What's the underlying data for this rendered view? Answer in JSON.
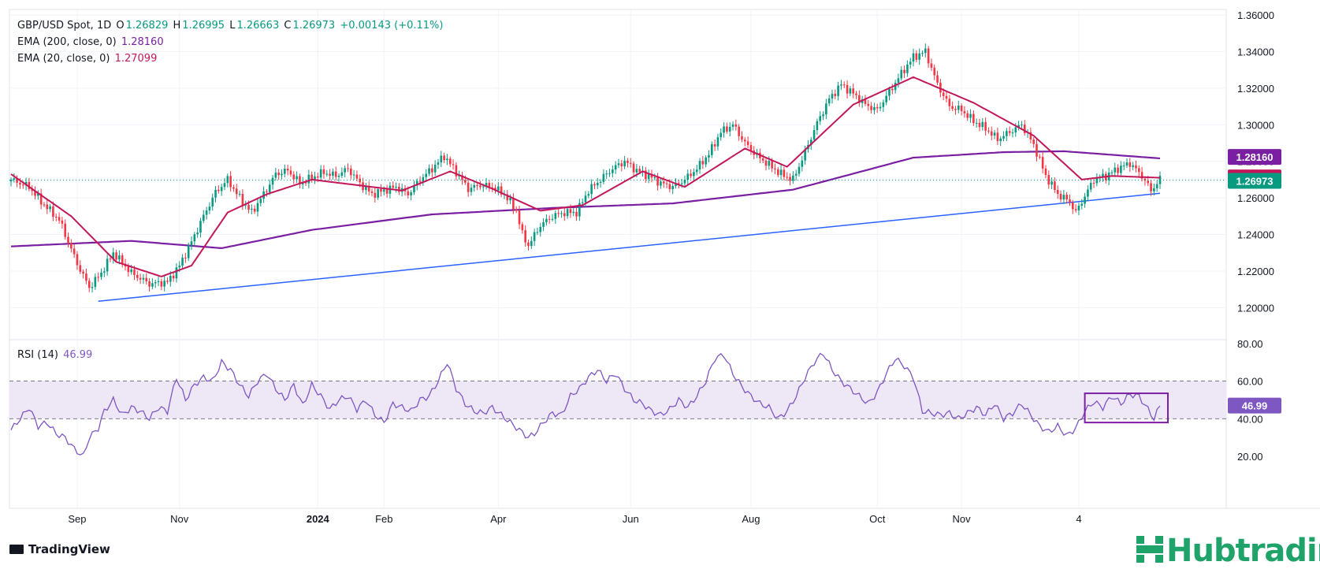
{
  "header": {
    "symbol": "GBP/USD Spot, 1D",
    "open_label": "O",
    "open": "1.26829",
    "high_label": "H",
    "high": "1.26995",
    "low_label": "L",
    "low": "1.26663",
    "close_label": "C",
    "close": "1.26973",
    "change": "+0.00143 (+0.11%)",
    "ema200_label": "EMA (200, close, 0)",
    "ema200_value": "1.28160",
    "ema20_label": "EMA (20, close, 0)",
    "ema20_value": "1.27099",
    "rsi_label": "RSI (14)",
    "rsi_value": "46.99"
  },
  "footer": {
    "brand": "TradingView",
    "partner_logo": "Hubtrading"
  },
  "colors": {
    "up": "#089981",
    "down": "#f23645",
    "ema200": "#7b1fa2",
    "ema20": "#c2185b",
    "trendline": "#2962ff",
    "rsi": "#7e57c2",
    "rsi_band": "#ede7f6",
    "grid": "#f0f3fa"
  },
  "chart_data": [
    {
      "type": "candlestick",
      "title": "GBP/USD Spot, 1D",
      "ylim": [
        1.195,
        1.363
      ],
      "y_ticks": [
        "1.36000",
        "1.34000",
        "1.32000",
        "1.30000",
        "1.28000",
        "1.26000",
        "1.24000",
        "1.22000",
        "1.20000"
      ],
      "x_ticks": [
        "Sep",
        "Nov",
        "2024",
        "Feb",
        "Apr",
        "Jun",
        "Aug",
        "Oct",
        "Nov",
        "4"
      ],
      "close_anchors": [
        [
          0,
          1.27
        ],
        [
          6,
          1.266
        ],
        [
          10,
          1.258
        ],
        [
          16,
          1.248
        ],
        [
          22,
          1.224
        ],
        [
          26,
          1.211
        ],
        [
          30,
          1.219
        ],
        [
          34,
          1.23
        ],
        [
          40,
          1.219
        ],
        [
          46,
          1.213
        ],
        [
          52,
          1.214
        ],
        [
          56,
          1.223
        ],
        [
          60,
          1.236
        ],
        [
          64,
          1.25
        ],
        [
          68,
          1.263
        ],
        [
          72,
          1.27
        ],
        [
          76,
          1.26
        ],
        [
          80,
          1.252
        ],
        [
          84,
          1.262
        ],
        [
          88,
          1.273
        ],
        [
          92,
          1.275
        ],
        [
          96,
          1.268
        ],
        [
          100,
          1.271
        ],
        [
          104,
          1.274
        ],
        [
          108,
          1.272
        ],
        [
          112,
          1.276
        ],
        [
          116,
          1.268
        ],
        [
          120,
          1.262
        ],
        [
          124,
          1.264
        ],
        [
          128,
          1.266
        ],
        [
          132,
          1.262
        ],
        [
          136,
          1.27
        ],
        [
          140,
          1.276
        ],
        [
          144,
          1.283
        ],
        [
          148,
          1.274
        ],
        [
          152,
          1.265
        ],
        [
          156,
          1.267
        ],
        [
          160,
          1.266
        ],
        [
          164,
          1.262
        ],
        [
          168,
          1.253
        ],
        [
          170,
          1.24
        ],
        [
          172,
          1.234
        ],
        [
          176,
          1.245
        ],
        [
          180,
          1.25
        ],
        [
          184,
          1.252
        ],
        [
          188,
          1.252
        ],
        [
          192,
          1.264
        ],
        [
          196,
          1.27
        ],
        [
          200,
          1.276
        ],
        [
          204,
          1.28
        ],
        [
          208,
          1.275
        ],
        [
          212,
          1.272
        ],
        [
          216,
          1.268
        ],
        [
          220,
          1.266
        ],
        [
          224,
          1.27
        ],
        [
          228,
          1.276
        ],
        [
          232,
          1.284
        ],
        [
          236,
          1.296
        ],
        [
          240,
          1.3
        ],
        [
          244,
          1.29
        ],
        [
          248,
          1.283
        ],
        [
          252,
          1.278
        ],
        [
          256,
          1.273
        ],
        [
          260,
          1.27
        ],
        [
          264,
          1.285
        ],
        [
          268,
          1.301
        ],
        [
          272,
          1.314
        ],
        [
          276,
          1.322
        ],
        [
          280,
          1.317
        ],
        [
          284,
          1.311
        ],
        [
          288,
          1.308
        ],
        [
          292,
          1.318
        ],
        [
          296,
          1.328
        ],
        [
          300,
          1.337
        ],
        [
          304,
          1.34
        ],
        [
          308,
          1.322
        ],
        [
          312,
          1.31
        ],
        [
          316,
          1.308
        ],
        [
          320,
          1.302
        ],
        [
          324,
          1.298
        ],
        [
          328,
          1.292
        ],
        [
          332,
          1.296
        ],
        [
          336,
          1.3
        ],
        [
          340,
          1.289
        ],
        [
          344,
          1.272
        ],
        [
          348,
          1.262
        ],
        [
          352,
          1.258
        ],
        [
          354,
          1.252
        ],
        [
          356,
          1.258
        ],
        [
          360,
          1.27
        ],
        [
          364,
          1.272
        ],
        [
          368,
          1.276
        ],
        [
          372,
          1.279
        ],
        [
          376,
          1.272
        ],
        [
          379,
          1.264
        ],
        [
          382,
          1.27
        ]
      ],
      "ema200": [
        [
          0,
          1.2335
        ],
        [
          40,
          1.2365
        ],
        [
          70,
          1.2325
        ],
        [
          100,
          1.2425
        ],
        [
          140,
          1.251
        ],
        [
          180,
          1.2545
        ],
        [
          220,
          1.257
        ],
        [
          260,
          1.2645
        ],
        [
          300,
          1.282
        ],
        [
          330,
          1.285
        ],
        [
          350,
          1.2855
        ],
        [
          382,
          1.2816
        ]
      ],
      "ema20": [
        [
          0,
          1.273
        ],
        [
          20,
          1.25
        ],
        [
          35,
          1.225
        ],
        [
          50,
          1.217
        ],
        [
          60,
          1.223
        ],
        [
          72,
          1.252
        ],
        [
          85,
          1.262
        ],
        [
          100,
          1.27
        ],
        [
          130,
          1.264
        ],
        [
          146,
          1.2745
        ],
        [
          160,
          1.265
        ],
        [
          176,
          1.253
        ],
        [
          190,
          1.256
        ],
        [
          210,
          1.2745
        ],
        [
          224,
          1.266
        ],
        [
          244,
          1.287
        ],
        [
          258,
          1.277
        ],
        [
          280,
          1.311
        ],
        [
          300,
          1.326
        ],
        [
          320,
          1.312
        ],
        [
          340,
          1.294
        ],
        [
          356,
          1.27
        ],
        [
          366,
          1.272
        ],
        [
          382,
          1.271
        ]
      ],
      "trendline": [
        [
          29,
          1.2035
        ],
        [
          382,
          1.2625
        ]
      ],
      "last_close": "1.26973",
      "ema20_last": "1.27099",
      "ema200_last": "1.28160"
    },
    {
      "type": "line",
      "title": "RSI (14)",
      "ylim": [
        10,
        82
      ],
      "y_ticks": [
        "80.00",
        "60.00",
        "40.00",
        "20.00"
      ],
      "band": [
        40,
        60
      ],
      "rsi_anchors": [
        [
          0,
          34
        ],
        [
          3,
          40
        ],
        [
          6,
          46
        ],
        [
          9,
          36
        ],
        [
          12,
          38
        ],
        [
          15,
          32
        ],
        [
          18,
          30
        ],
        [
          21,
          24
        ],
        [
          24,
          20
        ],
        [
          26,
          30
        ],
        [
          29,
          35
        ],
        [
          31,
          44
        ],
        [
          34,
          50
        ],
        [
          37,
          42
        ],
        [
          40,
          46
        ],
        [
          43,
          44
        ],
        [
          46,
          40
        ],
        [
          49,
          46
        ],
        [
          52,
          44
        ],
        [
          55,
          62
        ],
        [
          58,
          50
        ],
        [
          61,
          58
        ],
        [
          64,
          62
        ],
        [
          67,
          60
        ],
        [
          70,
          70
        ],
        [
          73,
          66
        ],
        [
          76,
          58
        ],
        [
          79,
          52
        ],
        [
          82,
          60
        ],
        [
          85,
          64
        ],
        [
          88,
          56
        ],
        [
          91,
          50
        ],
        [
          94,
          58
        ],
        [
          97,
          47
        ],
        [
          100,
          58
        ],
        [
          103,
          52
        ],
        [
          106,
          45
        ],
        [
          109,
          50
        ],
        [
          112,
          52
        ],
        [
          115,
          45
        ],
        [
          118,
          50
        ],
        [
          121,
          42
        ],
        [
          124,
          38
        ],
        [
          127,
          48
        ],
        [
          130,
          46
        ],
        [
          133,
          44
        ],
        [
          136,
          50
        ],
        [
          139,
          52
        ],
        [
          142,
          60
        ],
        [
          145,
          70
        ],
        [
          148,
          56
        ],
        [
          151,
          48
        ],
        [
          154,
          44
        ],
        [
          157,
          43
        ],
        [
          160,
          46
        ],
        [
          163,
          42
        ],
        [
          166,
          38
        ],
        [
          169,
          34
        ],
        [
          172,
          30
        ],
        [
          174,
          32
        ],
        [
          177,
          38
        ],
        [
          180,
          43
        ],
        [
          183,
          42
        ],
        [
          186,
          52
        ],
        [
          189,
          56
        ],
        [
          192,
          62
        ],
        [
          195,
          66
        ],
        [
          198,
          60
        ],
        [
          201,
          64
        ],
        [
          204,
          56
        ],
        [
          207,
          50
        ],
        [
          210,
          48
        ],
        [
          213,
          44
        ],
        [
          216,
          42
        ],
        [
          219,
          45
        ],
        [
          222,
          50
        ],
        [
          225,
          46
        ],
        [
          228,
          52
        ],
        [
          231,
          60
        ],
        [
          234,
          72
        ],
        [
          237,
          74
        ],
        [
          240,
          64
        ],
        [
          243,
          57
        ],
        [
          246,
          52
        ],
        [
          249,
          48
        ],
        [
          252,
          46
        ],
        [
          255,
          40
        ],
        [
          258,
          44
        ],
        [
          261,
          52
        ],
        [
          264,
          62
        ],
        [
          267,
          70
        ],
        [
          270,
          75
        ],
        [
          273,
          66
        ],
        [
          276,
          60
        ],
        [
          279,
          56
        ],
        [
          282,
          52
        ],
        [
          285,
          48
        ],
        [
          288,
          54
        ],
        [
          291,
          64
        ],
        [
          294,
          72
        ],
        [
          297,
          68
        ],
        [
          300,
          62
        ],
        [
          303,
          44
        ],
        [
          306,
          43
        ],
        [
          309,
          42
        ],
        [
          312,
          43
        ],
        [
          315,
          40
        ],
        [
          318,
          43
        ],
        [
          321,
          46
        ],
        [
          324,
          42
        ],
        [
          327,
          48
        ],
        [
          330,
          40
        ],
        [
          333,
          43
        ],
        [
          336,
          48
        ],
        [
          339,
          42
        ],
        [
          342,
          36
        ],
        [
          345,
          33
        ],
        [
          348,
          36
        ],
        [
          351,
          31
        ],
        [
          354,
          35
        ],
        [
          357,
          44
        ],
        [
          360,
          49
        ],
        [
          363,
          46
        ],
        [
          366,
          52
        ],
        [
          369,
          48
        ],
        [
          372,
          53
        ],
        [
          375,
          52
        ],
        [
          378,
          45
        ],
        [
          380,
          40
        ],
        [
          382,
          47
        ]
      ],
      "highlight_box": {
        "x_from": 357,
        "x_to": 382,
        "y_from": 38,
        "y_to": 53.5
      },
      "last_value": "46.99"
    }
  ]
}
